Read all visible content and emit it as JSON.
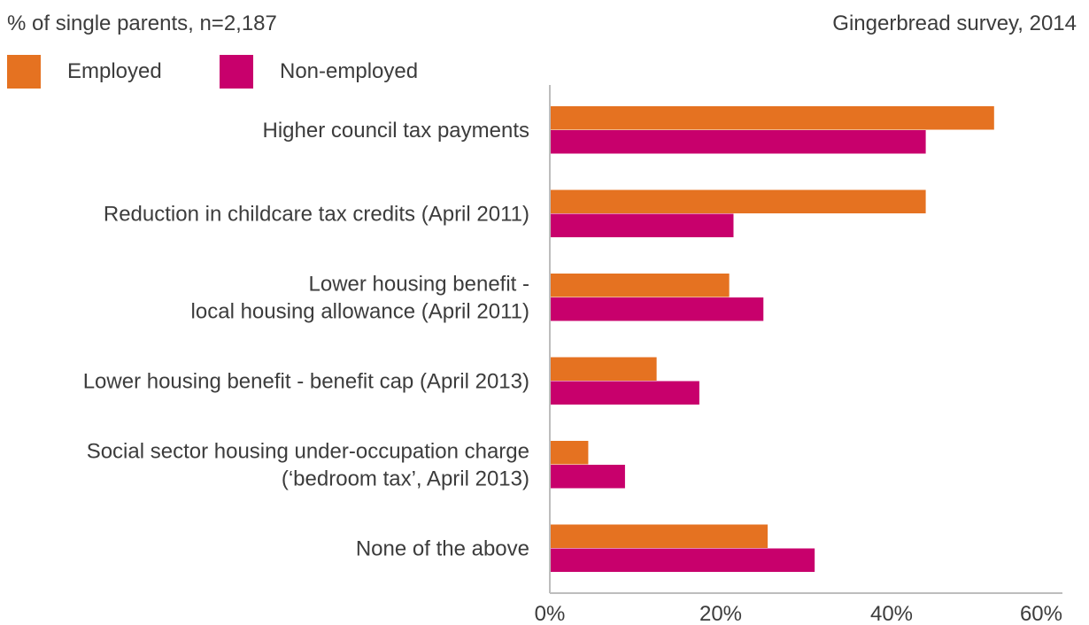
{
  "header": {
    "subtitle": "% of single parents, n=2,187",
    "source": "Gingerbread survey, 2014"
  },
  "legend": [
    {
      "label": "Employed",
      "color": "#e57221"
    },
    {
      "label": "Non-employed",
      "color": "#c8006c"
    }
  ],
  "chart_data": {
    "type": "bar",
    "orientation": "horizontal",
    "categories": [
      [
        "Higher council tax payments"
      ],
      [
        "Reduction in childcare tax credits (April 2011)"
      ],
      [
        "Lower housing benefit -",
        "local housing allowance (April 2011)"
      ],
      [
        "Lower housing benefit - benefit cap (April 2013)"
      ],
      [
        "Social sector housing under-occupation charge",
        "(‘bedroom tax’, April 2013)"
      ],
      [
        "None of the above"
      ]
    ],
    "series": [
      {
        "name": "Employed",
        "color": "#e57221",
        "values": [
          52,
          44,
          21,
          12.5,
          4.5,
          25.5
        ]
      },
      {
        "name": "Non-employed",
        "color": "#c8006c",
        "values": [
          44,
          21.5,
          25,
          17.5,
          8.8,
          31
        ]
      }
    ],
    "xlim": [
      0,
      60
    ],
    "xticks": [
      "0%",
      "20%",
      "40%",
      "60%"
    ],
    "xtick_values": [
      0,
      20,
      40,
      60
    ],
    "grid": false,
    "legend_position": "top-left"
  }
}
